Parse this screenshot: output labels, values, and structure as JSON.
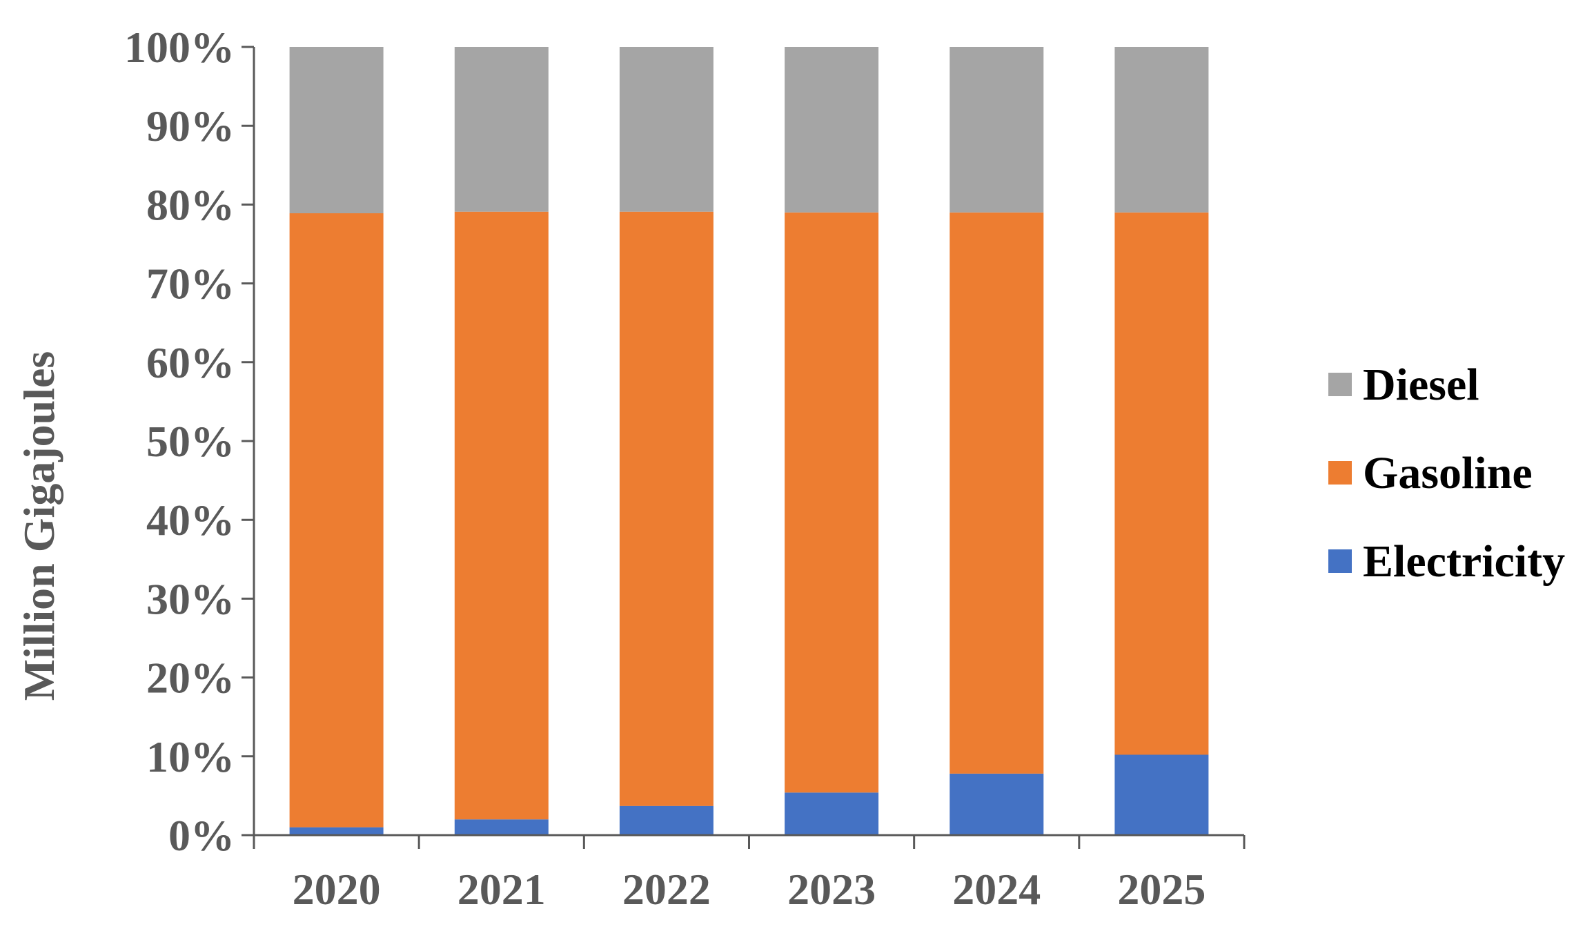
{
  "chart_data": {
    "type": "bar",
    "stacked": true,
    "percent_stacked": true,
    "categories": [
      "2020",
      "2021",
      "2022",
      "2023",
      "2024",
      "2025"
    ],
    "series": [
      {
        "name": "Electricity",
        "color": "#4472C4",
        "values": [
          1.0,
          2.0,
          3.7,
          5.4,
          7.8,
          10.2
        ]
      },
      {
        "name": "Gasoline",
        "color": "#ED7D31",
        "values": [
          77.9,
          77.1,
          75.4,
          73.6,
          71.2,
          68.8
        ]
      },
      {
        "name": "Diesel",
        "color": "#A5A5A5",
        "values": [
          21.1,
          20.9,
          20.9,
          21.0,
          21.0,
          21.0
        ]
      }
    ],
    "ylabel": "Million Gigajoules",
    "xlabel": "",
    "ylim": [
      0,
      100
    ],
    "yticks": [
      "0%",
      "10%",
      "20%",
      "30%",
      "40%",
      "50%",
      "60%",
      "70%",
      "80%",
      "90%",
      "100%"
    ],
    "legend": {
      "position": "right",
      "entries": [
        "Diesel",
        "Gasoline",
        "Electricity"
      ]
    },
    "grid": false,
    "axis_color": "#595959"
  }
}
